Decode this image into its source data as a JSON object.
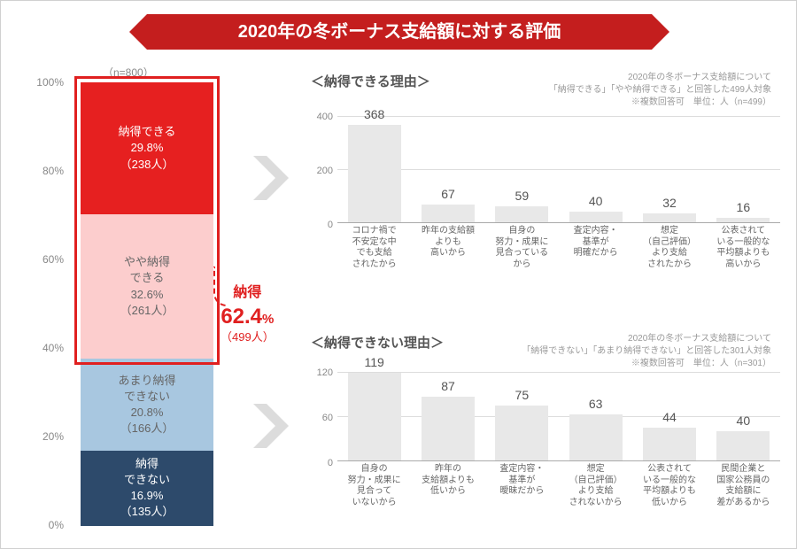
{
  "title": "2020年の冬ボーナス支給額に対する評価",
  "n_note": "（n=800）",
  "stacked": {
    "y_ticks": [
      "0%",
      "20%",
      "40%",
      "60%",
      "80%",
      "100%"
    ],
    "segments": [
      {
        "label": "納得できる",
        "pct": "29.8%",
        "count": "（238人）",
        "value": 29.8,
        "color": "#e62020",
        "text_light": false
      },
      {
        "label": "やや納得\nできる",
        "pct": "32.6%",
        "count": "（261人）",
        "value": 32.6,
        "color": "#fccdcd",
        "text_light": true
      },
      {
        "label": "あまり納得\nできない",
        "pct": "20.8%",
        "count": "（166人）",
        "value": 20.8,
        "color": "#a8c7e0",
        "text_light": true
      },
      {
        "label": "納得\nできない",
        "pct": "16.9%",
        "count": "（135人）",
        "value": 16.9,
        "color": "#2d4a6b",
        "text_light": false
      }
    ],
    "red_box_pct": 62.4
  },
  "callout": {
    "label": "納得",
    "big": "62.4",
    "pct_suffix": "%",
    "sub": "（499人）"
  },
  "top_chart": {
    "title": "＜納得できる理由＞",
    "note": "2020年の冬ボーナス支給額について\n「納得できる」「やや納得できる」と回答した499人対象\n※複数回答可　単位：人（n=499）",
    "y_max": 400,
    "y_ticks": [
      0,
      200,
      400
    ],
    "bar_color": "#e8e8e8",
    "bars": [
      {
        "value": 368,
        "label": "コロナ禍で\n不安定な中\nでも支給\nされたから"
      },
      {
        "value": 67,
        "label": "昨年の支給額\nよりも\n高いから"
      },
      {
        "value": 59,
        "label": "自身の\n努力・成果に\n見合っている\nから"
      },
      {
        "value": 40,
        "label": "査定内容・\n基準が\n明確だから"
      },
      {
        "value": 32,
        "label": "想定\n（自己評価）\nより支給\nされたから"
      },
      {
        "value": 16,
        "label": "公表されて\nいる一般的な\n平均額よりも\n高いから"
      }
    ]
  },
  "bottom_chart": {
    "title": "＜納得できない理由＞",
    "note": "2020年の冬ボーナス支給額について\n「納得できない」「あまり納得できない」と回答した301人対象\n※複数回答可　単位：人（n=301）",
    "y_max": 120,
    "y_ticks": [
      0,
      60,
      120
    ],
    "bar_color": "#e8e8e8",
    "bars": [
      {
        "value": 119,
        "label": "自身の\n努力・成果に\n見合って\nいないから"
      },
      {
        "value": 87,
        "label": "昨年の\n支給額よりも\n低いから"
      },
      {
        "value": 75,
        "label": "査定内容・\n基準が\n曖昧だから"
      },
      {
        "value": 63,
        "label": "想定\n（自己評価）\nより支給\nされないから"
      },
      {
        "value": 44,
        "label": "公表されて\nいる一般的な\n平均額よりも\n低いから"
      },
      {
        "value": 40,
        "label": "民間企業と\n国家公務員の\n支給額に\n差があるから"
      }
    ]
  }
}
